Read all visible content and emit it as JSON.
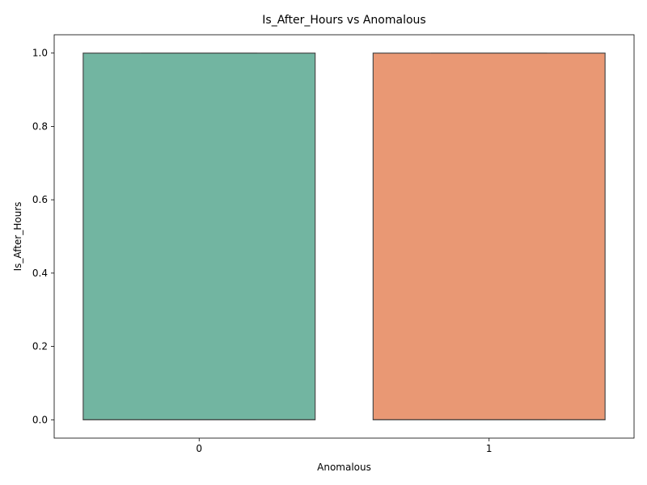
{
  "chart_data": {
    "type": "box",
    "title": "Is_After_Hours vs Anomalous",
    "xlabel": "Anomalous",
    "ylabel": "Is_After_Hours",
    "categories": [
      "0",
      "1"
    ],
    "boxes": [
      {
        "category": "0",
        "min": 0.0,
        "q1": 0.0,
        "median": 0.0,
        "q3": 1.0,
        "max": 1.0,
        "color": "#72b5a1"
      },
      {
        "category": "1",
        "min": 0.0,
        "q1": 0.0,
        "median": 0.0,
        "q3": 1.0,
        "max": 1.0,
        "color": "#e99874"
      }
    ],
    "yticks": [
      "0.0",
      "0.2",
      "0.4",
      "0.6",
      "0.8",
      "1.0"
    ],
    "ylim": [
      -0.05,
      1.05
    ],
    "grid": false,
    "legend": "none"
  }
}
